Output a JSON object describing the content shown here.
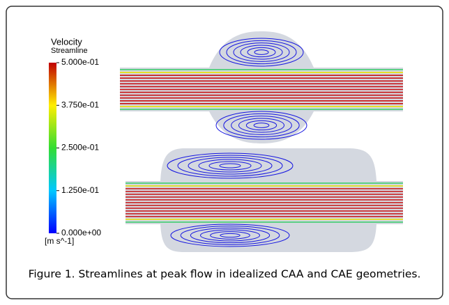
{
  "legend": {
    "title": "Velocity",
    "subtitle": "Streamline",
    "ticks": [
      {
        "value": 0.5,
        "label": "5.000e-01"
      },
      {
        "value": 0.375,
        "label": "3.750e-01"
      },
      {
        "value": 0.25,
        "label": "2.500e-01"
      },
      {
        "value": 0.125,
        "label": "1.250e-01"
      },
      {
        "value": 0,
        "label": "0.000e+00"
      }
    ],
    "unit": "[m s^-1]"
  },
  "caption": "Figure 1. Streamlines at peak flow in idealized CAA and CAE geometries."
}
